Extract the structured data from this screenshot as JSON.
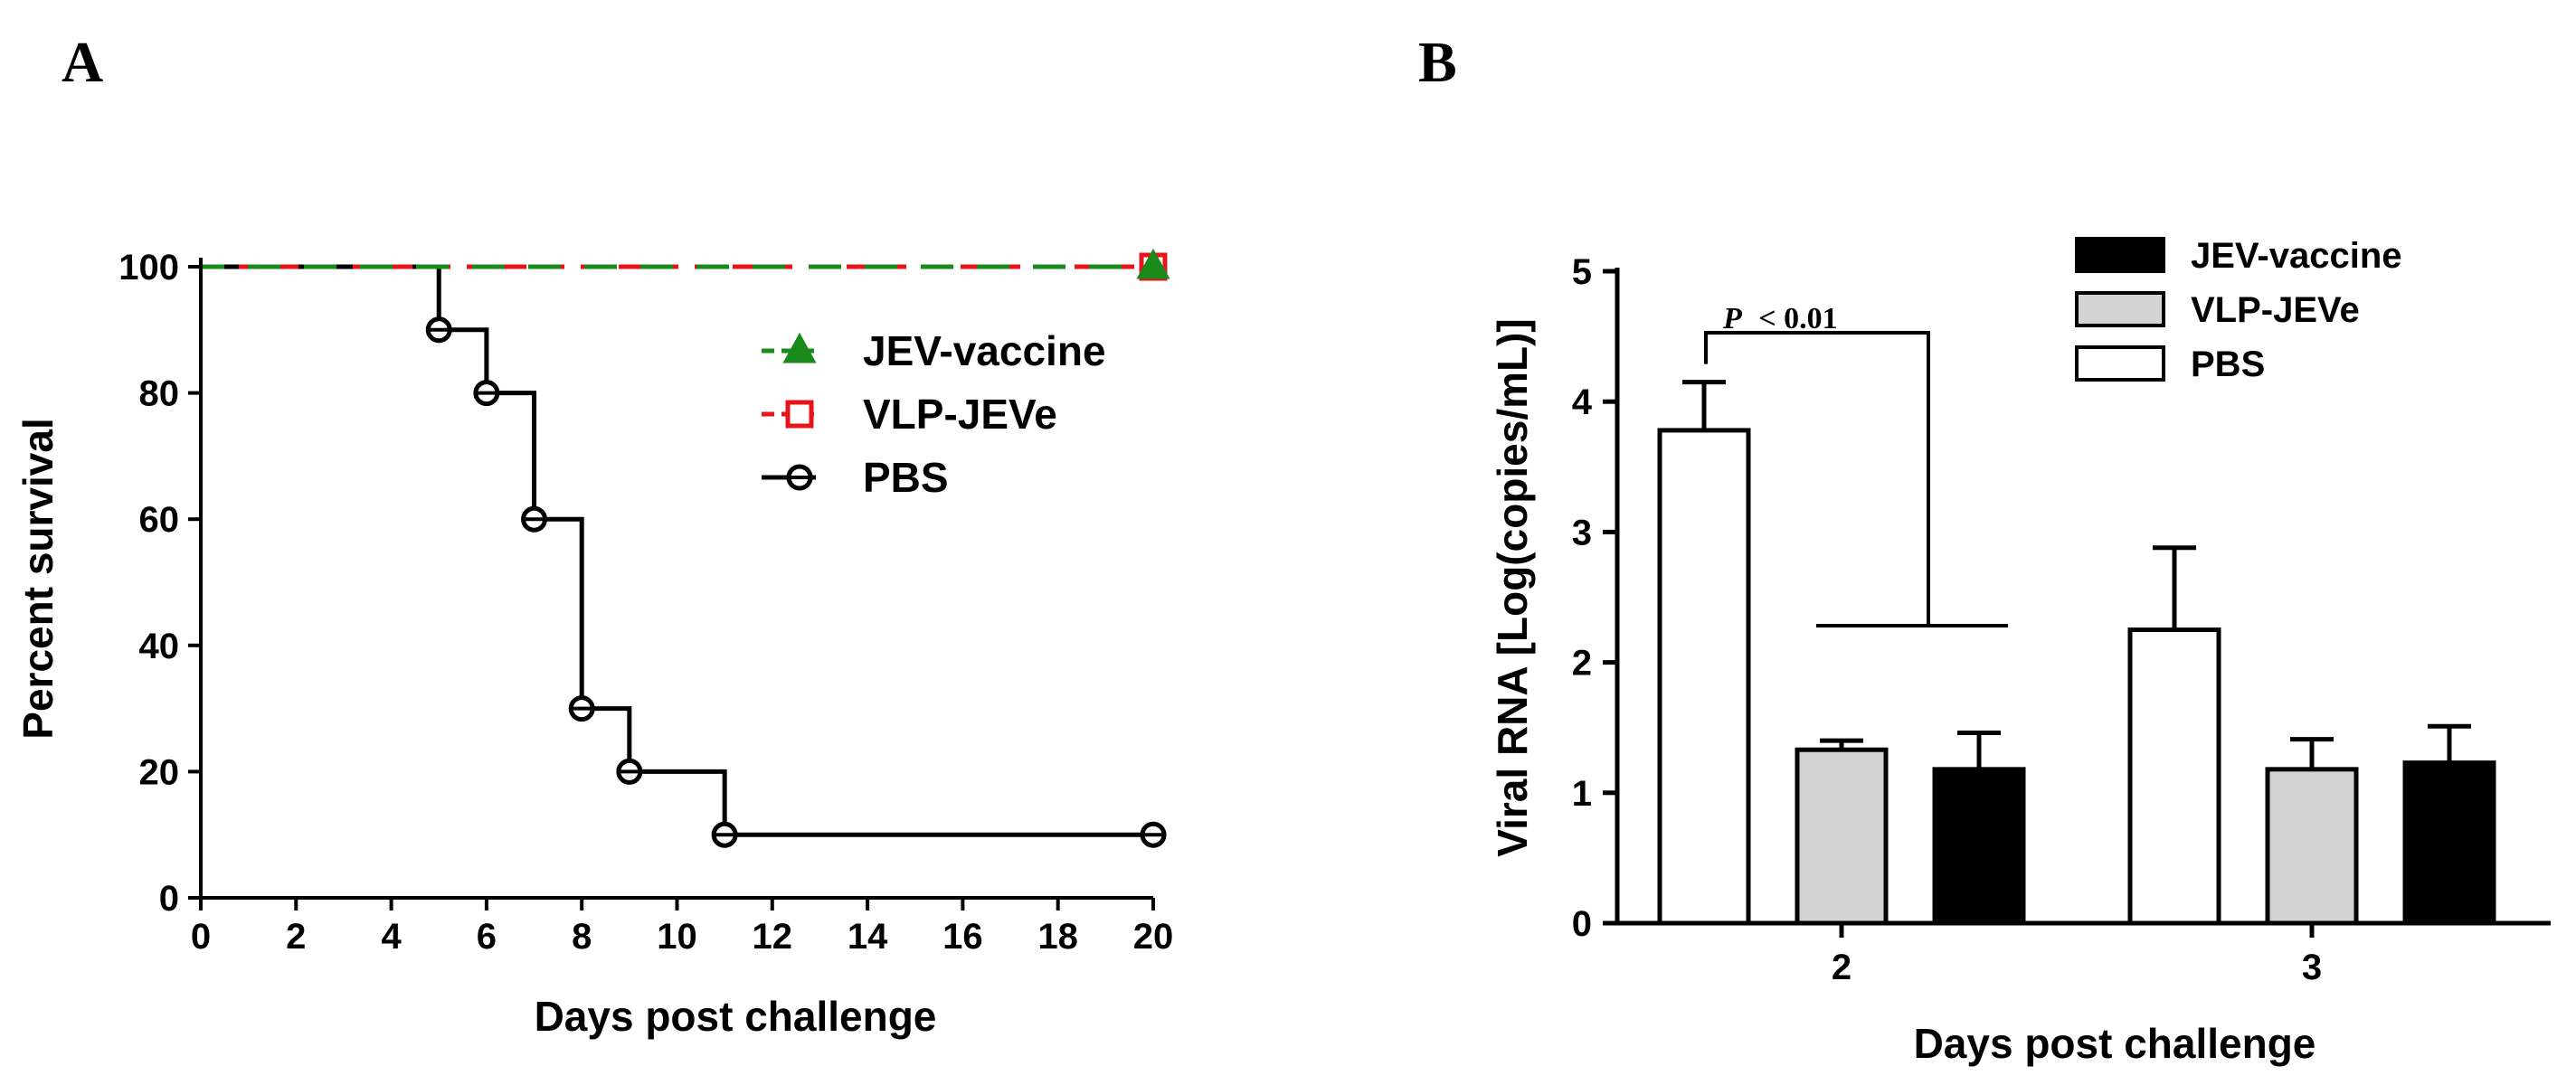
{
  "panels": {
    "a_label": "A",
    "b_label": "B"
  },
  "chart_data": [
    {
      "type": "line",
      "subtype": "step-survival",
      "title": "",
      "xlabel": "Days post challenge",
      "ylabel": "Percent survival",
      "xlim": [
        0,
        20
      ],
      "ylim": [
        0,
        100
      ],
      "xticks": [
        0,
        2,
        4,
        6,
        8,
        10,
        12,
        14,
        16,
        18,
        20
      ],
      "yticks": [
        0,
        20,
        40,
        60,
        80,
        100
      ],
      "legend_position": "right",
      "series": [
        {
          "name": "JEV-vaccine",
          "color": "#1a8a1a",
          "marker": "triangle",
          "style": "dashed",
          "x": [
            0,
            20
          ],
          "y": [
            100,
            100
          ],
          "markers": [
            [
              20,
              100
            ]
          ]
        },
        {
          "name": "VLP-JEVe",
          "color": "#e8141c",
          "marker": "square",
          "style": "dashed",
          "x": [
            0,
            20
          ],
          "y": [
            100,
            100
          ],
          "markers": [
            [
              20,
              100
            ]
          ]
        },
        {
          "name": "PBS",
          "color": "#000000",
          "marker": "circle",
          "style": "solid",
          "x": [
            0,
            5,
            6,
            7,
            8,
            9,
            11,
            20
          ],
          "y": [
            100,
            90,
            80,
            60,
            30,
            20,
            10,
            10
          ],
          "markers": [
            [
              5,
              90
            ],
            [
              6,
              80
            ],
            [
              7,
              60
            ],
            [
              8,
              30
            ],
            [
              9,
              20
            ],
            [
              11,
              10
            ],
            [
              20,
              10
            ]
          ]
        }
      ]
    },
    {
      "type": "bar",
      "subtype": "grouped-with-error-bars",
      "title": "",
      "xlabel": "Days post challenge",
      "ylabel": "Viral RNA [Log(copies/mL)]",
      "categories": [
        "2",
        "3"
      ],
      "ylim": [
        0,
        5
      ],
      "yticks": [
        0,
        1,
        2,
        3,
        4,
        5
      ],
      "legend_position": "top-right",
      "series": [
        {
          "name": "PBS",
          "fill": "#ffffff",
          "values": [
            3.78,
            2.25
          ],
          "errors": [
            0.37,
            0.63
          ]
        },
        {
          "name": "VLP-JEVe",
          "fill": "#d3d3d3",
          "values": [
            1.33,
            1.18
          ],
          "errors": [
            0.07,
            0.23
          ]
        },
        {
          "name": "JEV-vaccine",
          "fill": "#000000",
          "values": [
            1.18,
            1.23
          ],
          "errors": [
            0.28,
            0.28
          ]
        }
      ],
      "legend_order": [
        "JEV-vaccine",
        "VLP-JEVe",
        "PBS"
      ],
      "annotation": {
        "p_symbol": "P",
        "p_text": "< 0.01"
      }
    }
  ]
}
